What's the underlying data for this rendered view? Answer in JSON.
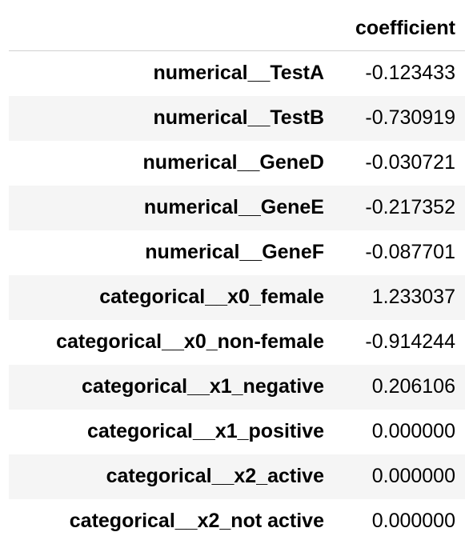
{
  "table": {
    "index_header": "",
    "columns": [
      "coefficient"
    ],
    "rows": [
      {
        "index": "numerical__TestA",
        "coefficient": "-0.123433"
      },
      {
        "index": "numerical__TestB",
        "coefficient": "-0.730919"
      },
      {
        "index": "numerical__GeneD",
        "coefficient": "-0.030721"
      },
      {
        "index": "numerical__GeneE",
        "coefficient": "-0.217352"
      },
      {
        "index": "numerical__GeneF",
        "coefficient": "-0.087701"
      },
      {
        "index": "categorical__x0_female",
        "coefficient": "1.233037"
      },
      {
        "index": "categorical__x0_non-female",
        "coefficient": "-0.914244"
      },
      {
        "index": "categorical__x1_negative",
        "coefficient": "0.206106"
      },
      {
        "index": "categorical__x1_positive",
        "coefficient": "0.000000"
      },
      {
        "index": "categorical__x2_active",
        "coefficient": "0.000000"
      },
      {
        "index": "categorical__x2_not active",
        "coefficient": "0.000000"
      }
    ]
  },
  "colors": {
    "stripe": "#f5f5f5",
    "header_rule": "#d0d0d0",
    "text": "#000000"
  }
}
